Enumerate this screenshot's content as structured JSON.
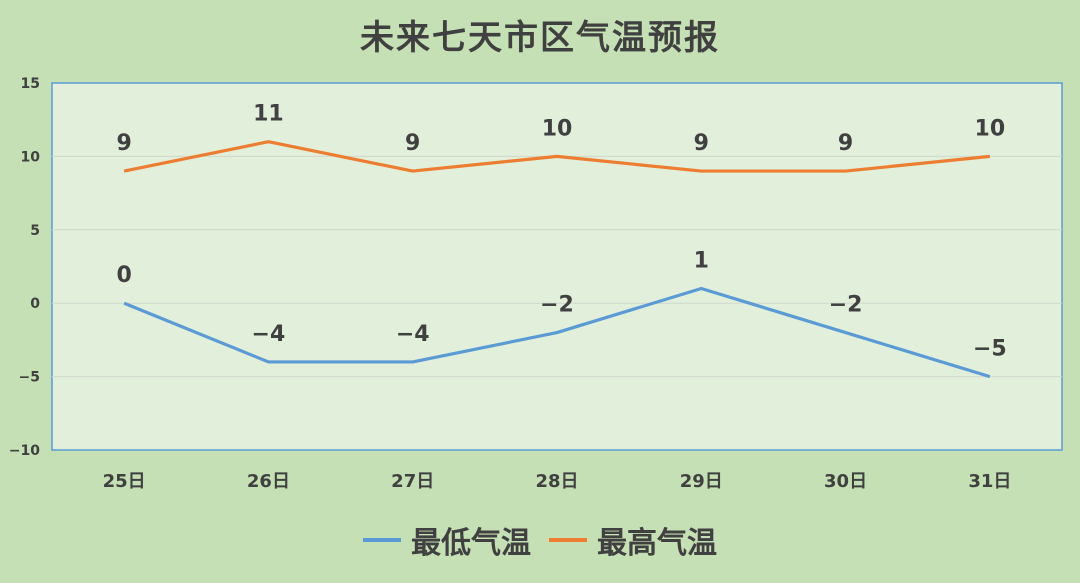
{
  "chart_data": {
    "type": "line",
    "title": "未来七天市区气温预报",
    "categories": [
      "25日",
      "26日",
      "27日",
      "28日",
      "29日",
      "30日",
      "31日"
    ],
    "series": [
      {
        "name": "最低气温",
        "color": "#5b9bd5",
        "values": [
          0,
          -4,
          -4,
          -2,
          1,
          -2,
          -5
        ]
      },
      {
        "name": "最高气温",
        "color": "#ed7d31",
        "values": [
          9,
          11,
          9,
          10,
          9,
          9,
          10
        ]
      }
    ],
    "ylim": [
      -10,
      15
    ],
    "yticks": [
      15,
      10,
      5,
      0,
      -5,
      -10
    ],
    "grid": true,
    "legend": "bottom",
    "plot_background": "#e2efda",
    "axis_color": "#5b9bd5"
  }
}
